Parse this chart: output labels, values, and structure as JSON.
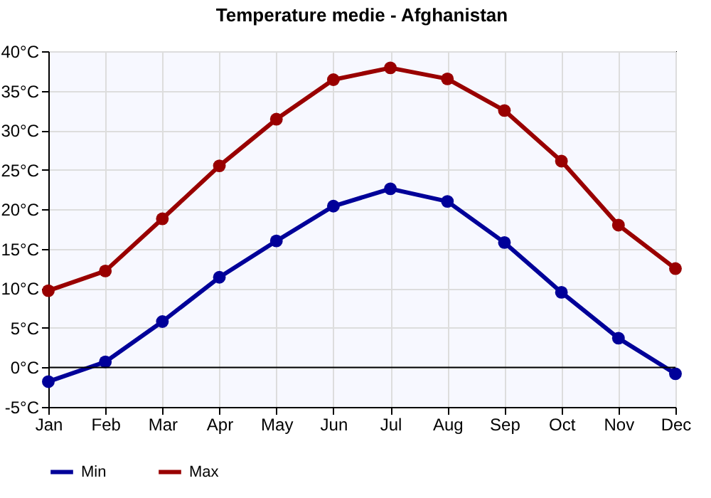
{
  "chart_data": {
    "type": "line",
    "title": "Temperature medie - Afghanistan",
    "categories": [
      "Jan",
      "Feb",
      "Mar",
      "Apr",
      "May",
      "Jun",
      "Jul",
      "Aug",
      "Sep",
      "Oct",
      "Nov",
      "Dec"
    ],
    "series": [
      {
        "name": "Min",
        "color": "#000099",
        "values": [
          -1.8,
          0.7,
          5.8,
          11.4,
          16.0,
          20.4,
          22.6,
          21.0,
          15.8,
          9.5,
          3.7,
          -0.8
        ]
      },
      {
        "name": "Max",
        "color": "#990000",
        "values": [
          9.7,
          12.2,
          18.8,
          25.5,
          31.4,
          36.4,
          37.9,
          36.5,
          32.5,
          26.1,
          18.0,
          12.5
        ]
      }
    ],
    "ylim": [
      -5,
      40
    ],
    "yticks": [
      {
        "value": -5,
        "label": "-5°C"
      },
      {
        "value": 0,
        "label": "0°C"
      },
      {
        "value": 5,
        "label": "5°C"
      },
      {
        "value": 10,
        "label": "10°C"
      },
      {
        "value": 15,
        "label": "15°C"
      },
      {
        "value": 20,
        "label": "20°C"
      },
      {
        "value": 25,
        "label": "25°C"
      },
      {
        "value": 30,
        "label": "30°C"
      },
      {
        "value": 35,
        "label": "35°C"
      },
      {
        "value": 40,
        "label": "40°C"
      }
    ],
    "ref_lines": [
      {
        "axis": "y",
        "value": 0,
        "color": "#000000"
      }
    ],
    "grid": true,
    "legend": "bottom left",
    "marker": "circle",
    "line_style": "solid"
  }
}
